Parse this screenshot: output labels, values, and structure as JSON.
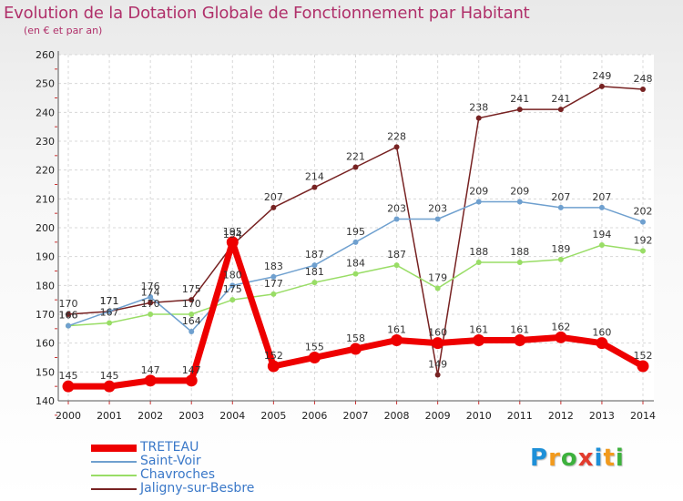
{
  "header": {
    "title": "Evolution de la Dotation Globale de Fonctionnement par Habitant",
    "subtitle": "(en € et par an)"
  },
  "brand": {
    "letters": [
      "P",
      "r",
      "o",
      "x",
      "i",
      "t",
      "i"
    ],
    "colors": [
      "#1e90d8",
      "#f29a1c",
      "#3db13d",
      "#e23c2e",
      "#1e90d8",
      "#f29a1c",
      "#3db13d"
    ]
  },
  "chart_data": {
    "type": "line",
    "title": "Evolution de la Dotation Globale de Fonctionnement par Habitant",
    "subtitle": "(en € et par an)",
    "xlabel": "",
    "ylabel": "",
    "x": [
      "2000",
      "2001",
      "2002",
      "2003",
      "2004",
      "2005",
      "2006",
      "2007",
      "2008",
      "2009",
      "2010",
      "2011",
      "2012",
      "2013",
      "2014"
    ],
    "ylim": [
      140,
      260
    ],
    "yticks": [
      140,
      150,
      160,
      170,
      180,
      190,
      200,
      210,
      220,
      230,
      240,
      250,
      260
    ],
    "grid": true,
    "legend_position": "bottom-left",
    "series": [
      {
        "name": "TRETEAU",
        "color": "#ee0000",
        "width": 7,
        "values": [
          145,
          145,
          147,
          147,
          195,
          152,
          155,
          158,
          161,
          160,
          161,
          161,
          162,
          160,
          152
        ]
      },
      {
        "name": "Saint-Voir",
        "color": "#6fa0cf",
        "width": 1.5,
        "values": [
          166,
          171,
          176,
          164,
          180,
          183,
          187,
          195,
          203,
          203,
          209,
          209,
          207,
          207,
          202
        ]
      },
      {
        "name": "Chavroches",
        "color": "#99dd66",
        "width": 1.5,
        "values": [
          166,
          167,
          170,
          170,
          175,
          177,
          181,
          184,
          187,
          179,
          188,
          188,
          189,
          194,
          192
        ]
      },
      {
        "name": "Jaligny-sur-Besbre",
        "color": "#772222",
        "width": 1.5,
        "values": [
          170,
          171,
          174,
          175,
          194,
          207,
          214,
          221,
          228,
          149,
          238,
          241,
          241,
          249,
          248
        ]
      }
    ]
  }
}
